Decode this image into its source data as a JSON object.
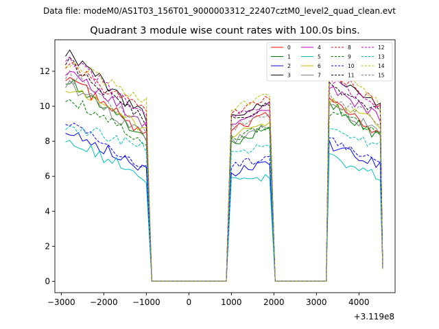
{
  "header": "Data file: modeM0/AS1T03_156T01_9000003312_22407cztM0_level2_quad_clean.evt",
  "chart_data": {
    "type": "line",
    "title": "Quadrant 3 module wise count rates with 100.0s bins.",
    "xlabel": "",
    "ylabel": "",
    "x_offset_label": "+3.119e8",
    "xlim": [
      -3150,
      4850
    ],
    "ylim": [
      -0.65,
      13.8
    ],
    "x_ticks": [
      -3000,
      -2000,
      -1000,
      0,
      1000,
      2000,
      3000,
      4000
    ],
    "x_tick_labels": [
      "−3000",
      "−2000",
      "−1000",
      "0",
      "1000",
      "2000",
      "3000",
      "4000"
    ],
    "y_ticks": [
      0,
      2,
      4,
      6,
      8,
      10,
      12
    ],
    "y_tick_labels": [
      "0",
      "2",
      "4",
      "6",
      "8",
      "10",
      "12"
    ],
    "legend_position": "top-right",
    "time_segments": [
      {
        "x_start": -2900,
        "x_end": -1000
      },
      {
        "x_start": 1000,
        "x_end": 1900
      },
      {
        "x_start": 3300,
        "x_end": 4500
      }
    ],
    "gap_points": [
      {
        "x": -870,
        "y": 0
      },
      {
        "x": 880,
        "y": 0
      },
      {
        "x": 2030,
        "y": 0
      },
      {
        "x": 3230,
        "y": 0
      }
    ],
    "end_values": {
      "x": 4560,
      "y": 0.7
    },
    "series": [
      {
        "name": "0",
        "color": "#ff0000",
        "dash": "solid",
        "seg1": [
          11.8,
          8.3
        ],
        "seg2": [
          8.6,
          9.5
        ],
        "seg3": [
          10.6,
          8.4
        ]
      },
      {
        "name": "1",
        "color": "#008000",
        "dash": "solid",
        "seg1": [
          11.6,
          8.2
        ],
        "seg2": [
          7.8,
          8.9
        ],
        "seg3": [
          10.2,
          8.2
        ]
      },
      {
        "name": "2",
        "color": "#0000ff",
        "dash": "solid",
        "seg1": [
          8.8,
          6.3
        ],
        "seg2": [
          6.2,
          6.8
        ],
        "seg3": [
          7.8,
          6.6
        ]
      },
      {
        "name": "3",
        "color": "#000000",
        "dash": "solid",
        "seg1": [
          13.2,
          9.3
        ],
        "seg2": [
          9.3,
          10.4
        ],
        "seg3": [
          11.9,
          9.9
        ]
      },
      {
        "name": "4",
        "color": "#bf00bf",
        "dash": "solid",
        "seg1": [
          12.1,
          8.9
        ],
        "seg2": [
          9.0,
          9.9
        ],
        "seg3": [
          11.0,
          9.4
        ]
      },
      {
        "name": "5",
        "color": "#00bfbf",
        "dash": "solid",
        "seg1": [
          8.3,
          5.8
        ],
        "seg2": [
          5.7,
          6.0
        ],
        "seg3": [
          7.1,
          6.0
        ]
      },
      {
        "name": "6",
        "color": "#bfbf00",
        "dash": "solid",
        "seg1": [
          11.2,
          8.6
        ],
        "seg2": [
          8.2,
          9.2
        ],
        "seg3": [
          10.4,
          8.9
        ]
      },
      {
        "name": "7",
        "color": "#808080",
        "dash": "solid",
        "seg1": [
          11.4,
          8.2
        ],
        "seg2": [
          8.0,
          8.9
        ],
        "seg3": [
          10.1,
          8.5
        ]
      },
      {
        "name": "8",
        "color": "#ff0000",
        "dash": "dashed",
        "seg1": [
          12.5,
          9.6
        ],
        "seg2": [
          9.6,
          10.5
        ],
        "seg3": [
          12.0,
          10.1
        ]
      },
      {
        "name": "9",
        "color": "#008000",
        "dash": "dashed",
        "seg1": [
          10.6,
          8.0
        ],
        "seg2": [
          8.1,
          8.9
        ],
        "seg3": [
          9.7,
          8.5
        ]
      },
      {
        "name": "10",
        "color": "#0000ff",
        "dash": "dashed",
        "seg1": [
          9.3,
          6.5
        ],
        "seg2": [
          6.5,
          7.2
        ],
        "seg3": [
          8.3,
          6.7
        ]
      },
      {
        "name": "11",
        "color": "#000000",
        "dash": "dashed",
        "seg1": [
          12.7,
          9.1
        ],
        "seg2": [
          9.2,
          10.1
        ],
        "seg3": [
          11.3,
          9.6
        ]
      },
      {
        "name": "12",
        "color": "#bf00bf",
        "dash": "dashed",
        "seg1": [
          12.9,
          9.4
        ],
        "seg2": [
          9.5,
          10.3
        ],
        "seg3": [
          11.5,
          9.9
        ]
      },
      {
        "name": "13",
        "color": "#00bfbf",
        "dash": "dashed",
        "seg1": [
          9.0,
          7.6
        ],
        "seg2": [
          7.2,
          7.8
        ],
        "seg3": [
          8.9,
          7.7
        ]
      },
      {
        "name": "14",
        "color": "#bfbf00",
        "dash": "dashed",
        "seg1": [
          12.6,
          10.4
        ],
        "seg2": [
          9.8,
          10.6
        ],
        "seg3": [
          12.4,
          10.1
        ]
      },
      {
        "name": "15",
        "color": "#808080",
        "dash": "dashed",
        "seg1": [
          11.9,
          8.8
        ],
        "seg2": [
          8.8,
          9.6
        ],
        "seg3": [
          10.6,
          9.1
        ]
      }
    ]
  }
}
